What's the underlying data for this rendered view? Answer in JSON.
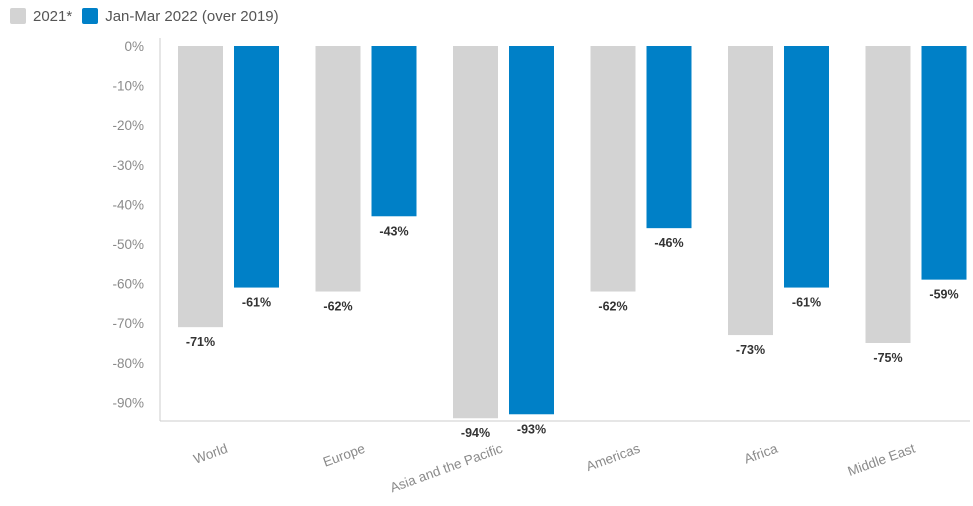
{
  "chart_data": {
    "type": "bar",
    "categories": [
      "World",
      "Europe",
      "Asia and the Pacific",
      "Americas",
      "Africa",
      "Middle East"
    ],
    "series": [
      {
        "name": "2021*",
        "values": [
          -71,
          -62,
          -94,
          -62,
          -73,
          -75
        ],
        "labels": [
          "-71%",
          "-62%",
          "-94%",
          "-62%",
          "-73%",
          "-75%"
        ],
        "color": "#d3d3d3"
      },
      {
        "name": "Jan-Mar 2022 (over 2019)",
        "values": [
          -61,
          -43,
          -93,
          -46,
          -61,
          -59
        ],
        "labels": [
          "-61%",
          "-43%",
          "-93%",
          "-46%",
          "-61%",
          "-59%"
        ],
        "color": "#0080c7"
      }
    ],
    "yticks": [
      "0%",
      "-10%",
      "-20%",
      "-30%",
      "-40%",
      "-50%",
      "-60%",
      "-70%",
      "-80%",
      "-90%"
    ],
    "ylim": [
      -95,
      0
    ],
    "grid": false,
    "legend_position": "top-left"
  },
  "legend": {
    "items": [
      {
        "label": "2021*",
        "color": "#d3d3d3"
      },
      {
        "label": "Jan-Mar 2022 (over 2019)",
        "color": "#0080c7"
      }
    ]
  },
  "colors": {
    "axis": "#cccccc",
    "tick_text": "#8a8a8a",
    "label_text": "#333333"
  }
}
